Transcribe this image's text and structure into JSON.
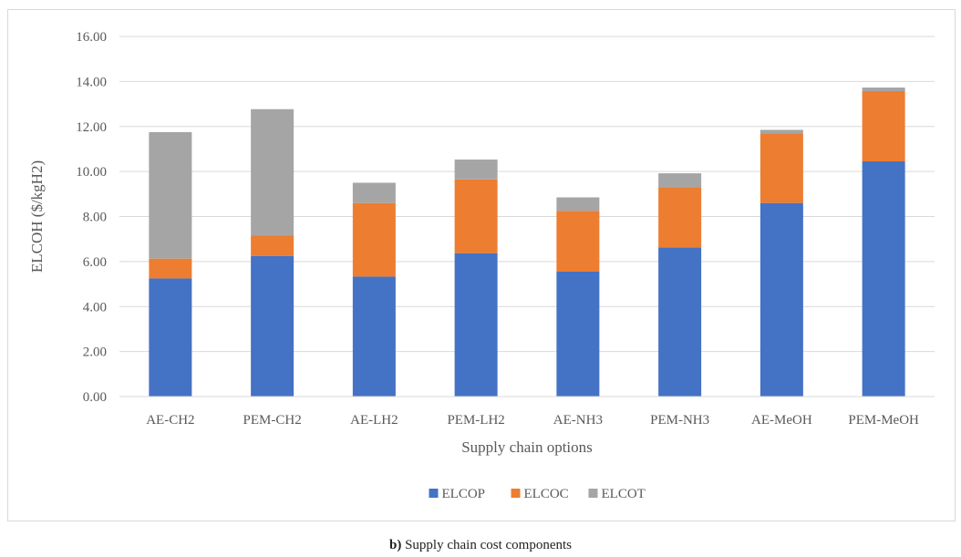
{
  "chart_data": {
    "type": "bar",
    "stacked": true,
    "categories": [
      "AE-CH2",
      "PEM-CH2",
      "AE-LH2",
      "PEM-LH2",
      "AE-NH3",
      "PEM-NH3",
      "AE-MeOH",
      "PEM-MeOH"
    ],
    "series": [
      {
        "name": "ELCOP",
        "color": "#4472c4",
        "values": [
          5.25,
          6.25,
          5.33,
          6.37,
          5.55,
          6.62,
          8.6,
          10.45
        ]
      },
      {
        "name": "ELCOC",
        "color": "#ed7d31",
        "values": [
          0.88,
          0.9,
          3.27,
          3.28,
          2.7,
          2.68,
          3.1,
          3.12
        ]
      },
      {
        "name": "ELCOT",
        "color": "#a5a5a5",
        "values": [
          5.62,
          5.62,
          0.9,
          0.88,
          0.6,
          0.62,
          0.15,
          0.16
        ]
      }
    ],
    "ylim": [
      0,
      16
    ],
    "ytick_step": 2,
    "ytick_labels": [
      "0.00",
      "2.00",
      "4.00",
      "6.00",
      "8.00",
      "10.00",
      "12.00",
      "14.00",
      "16.00"
    ],
    "ylabel": "ELCOH ($/kgH2)",
    "xlabel": "Supply chain options",
    "grid": true,
    "legend_position": "bottom"
  },
  "caption": {
    "label": "b)",
    "text": " Supply chain cost components"
  }
}
